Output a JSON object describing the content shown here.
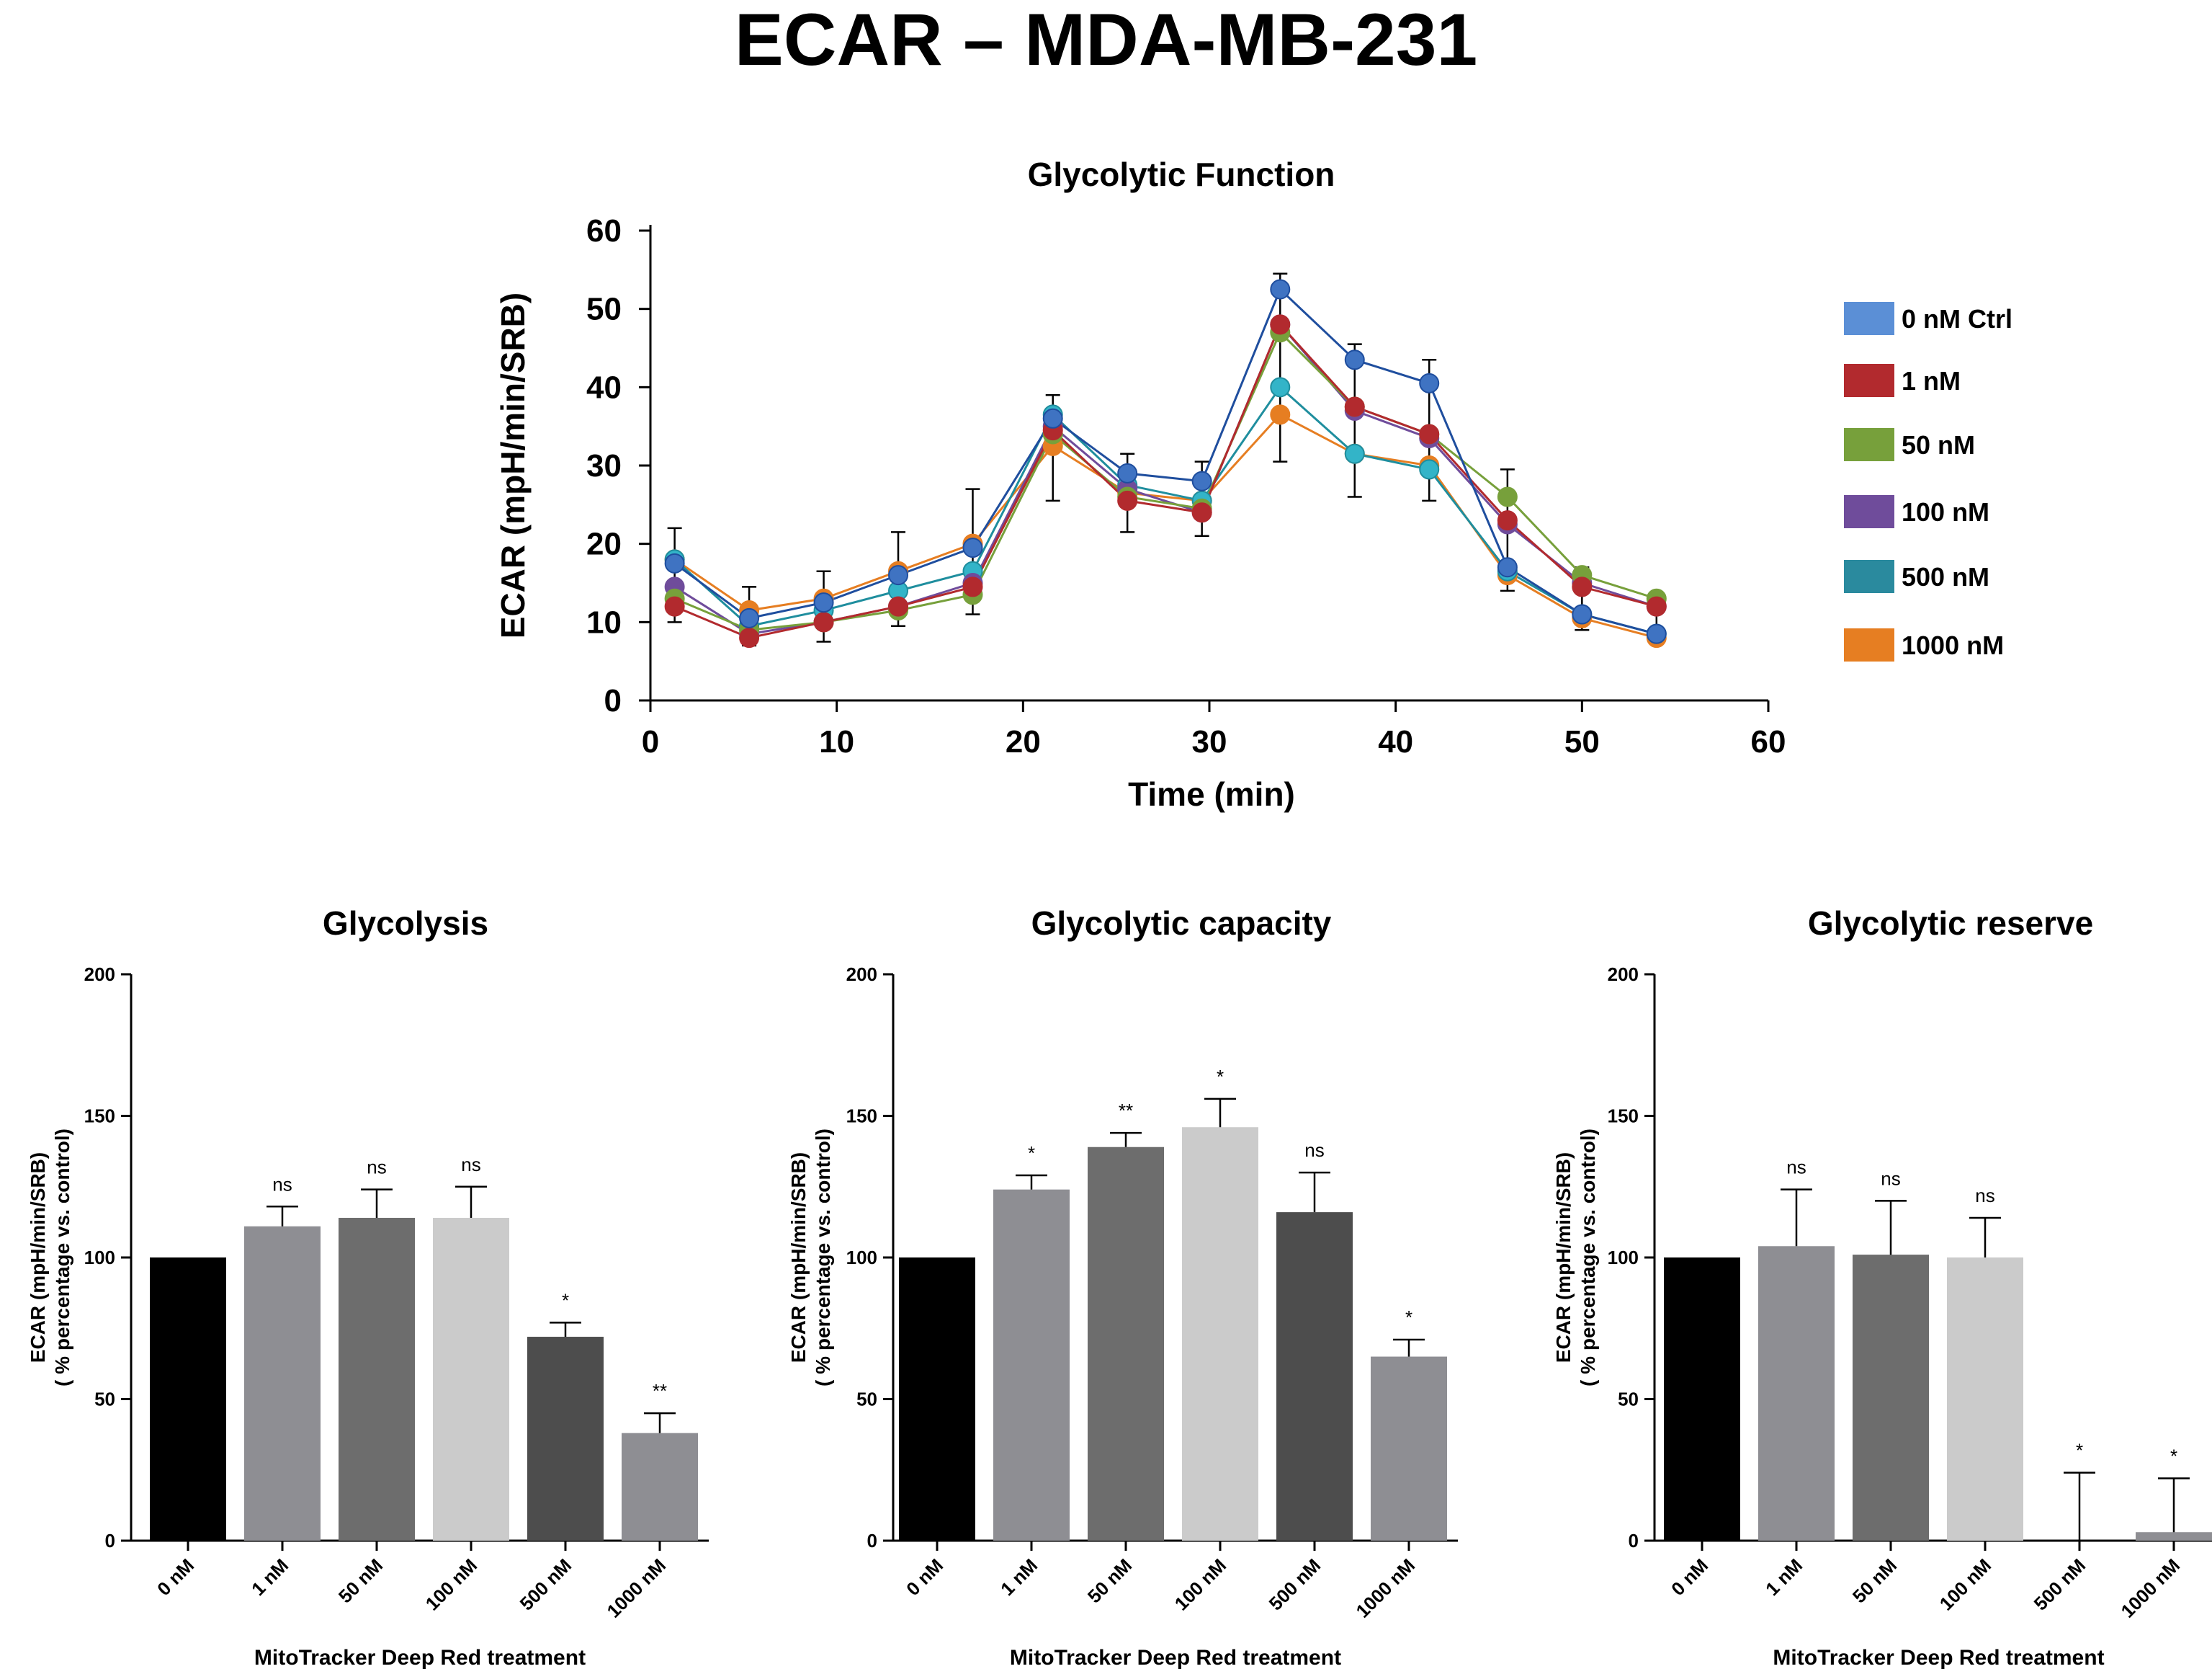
{
  "figure_title": "ECAR – MDA-MB-231",
  "chart_data": [
    {
      "type": "line",
      "title": "Glycolytic  Function",
      "xlabel": "Time (min)",
      "ylabel": "ECAR (mpH/min/SRB)",
      "xlim": [
        0,
        60
      ],
      "ylim": [
        0,
        60
      ],
      "xticks": [
        0,
        10,
        20,
        30,
        40,
        50,
        60
      ],
      "yticks": [
        0,
        10,
        20,
        30,
        40,
        50,
        60
      ],
      "x": [
        1.3,
        5.3,
        9.3,
        13.3,
        17.3,
        21.6,
        25.6,
        29.6,
        33.8,
        37.8,
        41.8,
        46,
        50,
        54
      ],
      "series": [
        {
          "name": "0 nM Ctrl",
          "color": "#5b8fd6",
          "dot": "#3f73c2",
          "line": "#1f4e9e",
          "values": [
            17.5,
            10.5,
            12.5,
            16,
            19.5,
            36,
            29,
            28,
            52.5,
            43.5,
            40.5,
            17,
            11,
            8.5
          ]
        },
        {
          "name": "1 nM",
          "color": "#b22a2e",
          "dot": "#b22a2e",
          "line": "#b22a2e",
          "values": [
            12,
            8,
            10,
            12,
            14.5,
            34.5,
            25.5,
            24,
            48,
            37.5,
            34,
            23,
            14.5,
            12
          ]
        },
        {
          "name": "50 nM",
          "color": "#77a03b",
          "dot": "#77a03b",
          "line": "#77a03b",
          "values": [
            13,
            9,
            10,
            11.5,
            13.5,
            34,
            26,
            24.5,
            47,
            37.5,
            34,
            26,
            16,
            13
          ]
        },
        {
          "name": "100 nM",
          "color": "#6f4c9b",
          "dot": "#6f4c9b",
          "line": "#6f4c9b",
          "values": [
            14.5,
            8.5,
            10,
            12,
            15,
            35,
            27,
            24,
            48,
            37,
            33.5,
            22.5,
            15,
            12
          ]
        },
        {
          "name": "500 nM",
          "color": "#2a8a9e",
          "dot": "#33b4c8",
          "line": "#1f8e9e",
          "values": [
            18,
            9.5,
            11.5,
            14,
            16.5,
            36.5,
            27.5,
            25.5,
            40,
            31.5,
            29.5,
            16.5,
            11,
            8.5
          ]
        },
        {
          "name": "1000 nM",
          "color": "#e67e22",
          "dot": "#e67e22",
          "line": "#e67e22",
          "values": [
            18,
            11.5,
            13,
            16.5,
            20,
            32.5,
            26.5,
            25.5,
            36.5,
            31.5,
            30,
            16,
            10.5,
            8
          ]
        }
      ],
      "error_bars": [
        {
          "x": 1.3,
          "high": 22,
          "low": 10
        },
        {
          "x": 5.3,
          "high": 14.5,
          "low": 7
        },
        {
          "x": 9.3,
          "high": 16.5,
          "low": 7.5
        },
        {
          "x": 13.3,
          "high": 21.5,
          "low": 9.5
        },
        {
          "x": 17.3,
          "high": 27,
          "low": 11
        },
        {
          "x": 21.6,
          "high": 39,
          "low": 25.5
        },
        {
          "x": 25.6,
          "high": 31.5,
          "low": 21.5
        },
        {
          "x": 29.6,
          "high": 30.5,
          "low": 21
        },
        {
          "x": 33.8,
          "high": 54.5,
          "low": 30.5
        },
        {
          "x": 37.8,
          "high": 45.5,
          "low": 26
        },
        {
          "x": 41.8,
          "high": 43.5,
          "low": 25.5
        },
        {
          "x": 46,
          "high": 29.5,
          "low": 14
        },
        {
          "x": 50,
          "high": 17,
          "low": 9
        },
        {
          "x": 54,
          "high": 13.5,
          "low": 7.5
        }
      ],
      "legend_position": "right"
    },
    {
      "type": "bar",
      "title": "Glycolysis",
      "xlabel": "MitoTracker Deep Red treatment",
      "ylabel": "ECAR (mpH/min/SRB)",
      "ylabel2": "( % percentage vs. control)",
      "ylim": [
        0,
        200
      ],
      "yticks": [
        0,
        50,
        100,
        150,
        200
      ],
      "categories": [
        "0 nM",
        "1 nM",
        "50 nM",
        "100 nM",
        "500 nM",
        "1000 nM"
      ],
      "values": [
        100,
        111,
        114,
        114,
        72,
        38
      ],
      "error_upper": [
        0,
        118,
        124,
        125,
        77,
        45
      ],
      "significance": [
        "",
        "ns",
        "ns",
        "ns",
        "*",
        "**"
      ],
      "colors": [
        "#000000",
        "#8e8e93",
        "#6d6d6d",
        "#cbcbcb",
        "#4d4d4d",
        "#8e8e93"
      ]
    },
    {
      "type": "bar",
      "title": "Glycolytic  capacity",
      "xlabel": "MitoTracker Deep Red treatment",
      "ylabel": "ECAR (mpH/min/SRB)",
      "ylabel2": "( % percentage vs. control)",
      "ylim": [
        0,
        200
      ],
      "yticks": [
        0,
        50,
        100,
        150,
        200
      ],
      "categories": [
        "0 nM",
        "1 nM",
        "50 nM",
        "100 nM",
        "500 nM",
        "1000 nM"
      ],
      "values": [
        100,
        124,
        139,
        146,
        116,
        65
      ],
      "error_upper": [
        0,
        129,
        144,
        156,
        130,
        71
      ],
      "significance": [
        "",
        "*",
        "**",
        "*",
        "ns",
        "*"
      ],
      "colors": [
        "#000000",
        "#8e8e93",
        "#6d6d6d",
        "#cbcbcb",
        "#4d4d4d",
        "#8e8e93"
      ]
    },
    {
      "type": "bar",
      "title": "Glycolytic  reserve",
      "xlabel": "MitoTracker Deep Red treatment",
      "ylabel": "ECAR (mpH/min/SRB)",
      "ylabel2": "( % percentage vs. control)",
      "ylim": [
        0,
        200
      ],
      "yticks": [
        0,
        50,
        100,
        150,
        200
      ],
      "categories": [
        "0 nM",
        "1 nM",
        "50 nM",
        "100 nM",
        "500 nM",
        "1000 nM"
      ],
      "values": [
        100,
        104,
        101,
        100,
        0,
        3
      ],
      "error_upper": [
        0,
        124,
        120,
        114,
        24,
        22
      ],
      "significance": [
        "",
        "ns",
        "ns",
        "ns",
        "*",
        "*"
      ],
      "colors": [
        "#000000",
        "#8e8e93",
        "#6d6d6d",
        "#cbcbcb",
        "#4d4d4d",
        "#8e8e93"
      ]
    }
  ]
}
